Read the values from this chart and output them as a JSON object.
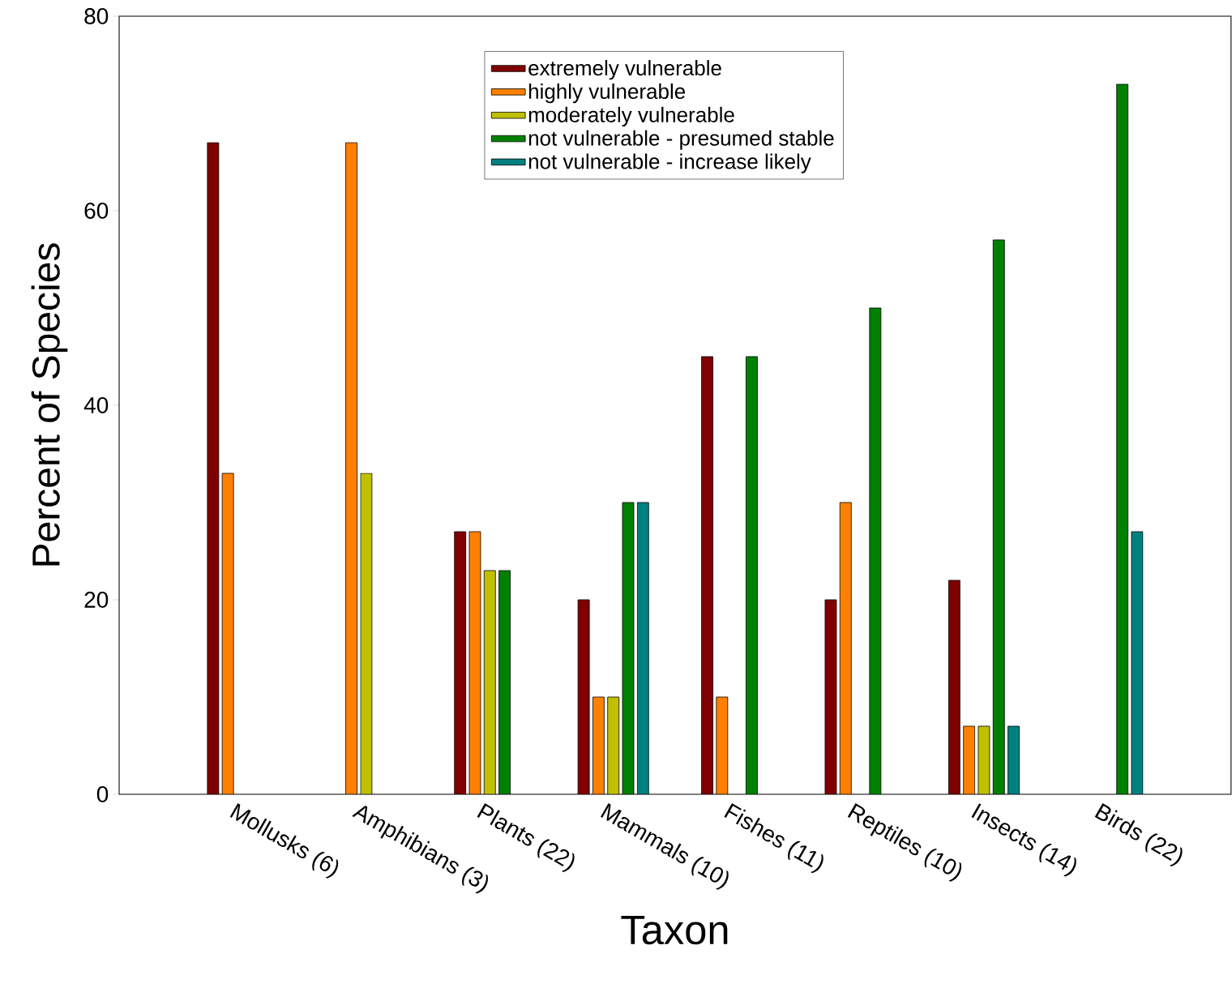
{
  "chart_data": {
    "type": "bar",
    "xlabel": "Taxon",
    "ylabel": "Percent of Species",
    "categories": [
      "Mollusks (6)",
      "Amphibians (3)",
      "Plants (22)",
      "Mammals (10)",
      "Fishes (11)",
      "Reptiles (10)",
      "Insects (14)",
      "Birds (22)"
    ],
    "series": [
      {
        "name": "extremely vulnerable",
        "color": "#800000",
        "values": [
          67,
          null,
          27,
          20,
          45,
          20,
          22,
          null
        ]
      },
      {
        "name": "highly vulnerable",
        "color": "#ff8000",
        "values": [
          33,
          67,
          27,
          10,
          10,
          30,
          7,
          null
        ]
      },
      {
        "name": "moderately vulnerable",
        "color": "#c0c000",
        "values": [
          null,
          33,
          23,
          10,
          null,
          null,
          7,
          null
        ]
      },
      {
        "name": "not vulnerable - presumed stable",
        "color": "#008000",
        "values": [
          null,
          null,
          23,
          30,
          45,
          50,
          57,
          73
        ]
      },
      {
        "name": "not vulnerable - increase likely",
        "color": "#008080",
        "values": [
          null,
          null,
          null,
          30,
          null,
          null,
          7,
          27
        ]
      }
    ],
    "ylim": [
      0,
      80
    ],
    "yticks": [
      0,
      20,
      40,
      60,
      80
    ],
    "legend": "top"
  }
}
